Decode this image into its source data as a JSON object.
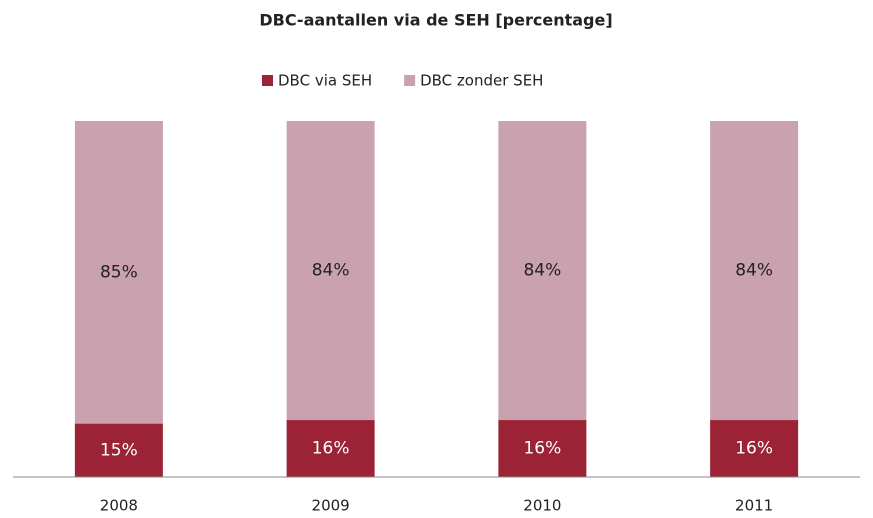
{
  "chart_data": {
    "type": "stacked_bar",
    "title": "DBC-aantallen via de SEH [percentage]",
    "categories": [
      "2008",
      "2009",
      "2010",
      "2011"
    ],
    "series": [
      {
        "name": "DBC via SEH",
        "color": "#9b2335",
        "values": [
          15,
          16,
          16,
          16
        ],
        "value_labels": [
          "15%",
          "16%",
          "16%",
          "16%"
        ]
      },
      {
        "name": "DBC zonder SEH",
        "color": "#c9a1af",
        "values": [
          85,
          84,
          84,
          84
        ],
        "value_labels": [
          "85%",
          "84%",
          "84%",
          "84%"
        ]
      }
    ],
    "ylim": [
      0,
      100
    ],
    "legend": "top"
  }
}
